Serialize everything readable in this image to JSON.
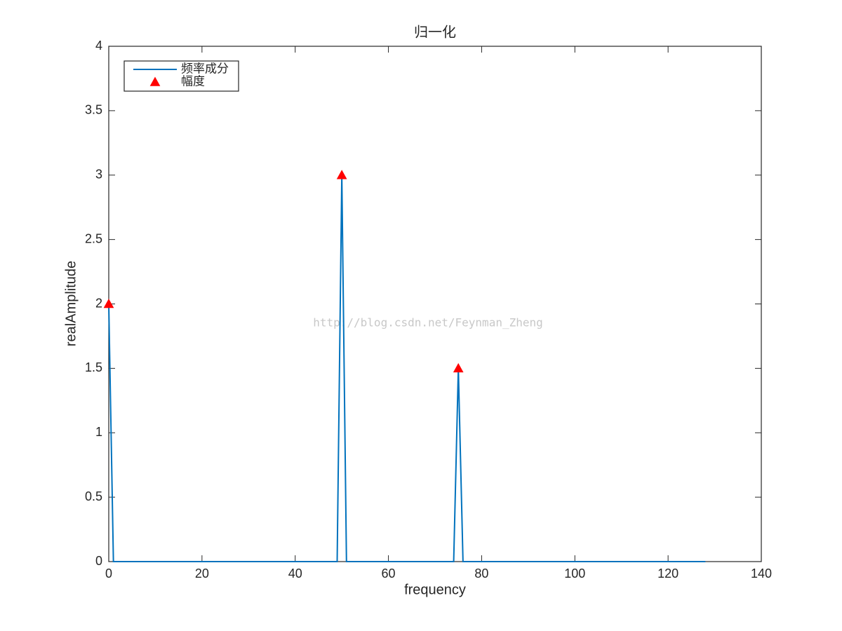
{
  "chart_data": {
    "type": "line",
    "title": "归一化",
    "x_label": "frequency",
    "y_label": "realAmplitude",
    "series": [
      {
        "name": "频率成分",
        "color": "#0072bd",
        "mode": "line",
        "x": [
          0,
          1,
          49,
          50,
          51,
          74,
          75,
          76,
          128
        ],
        "values": [
          2,
          0,
          0,
          3,
          0,
          0,
          1.5,
          0,
          0
        ]
      },
      {
        "name": "幅度",
        "color": "#ff0000",
        "mode": "markers",
        "marker": "triangle",
        "x": [
          0,
          50,
          75
        ],
        "values": [
          2,
          3,
          1.5
        ]
      }
    ],
    "xlim": [
      0,
      140
    ],
    "xticks": [
      0,
      20,
      40,
      60,
      80,
      100,
      120,
      140
    ],
    "ylim": [
      0,
      4
    ],
    "yticks": [
      0,
      0.5,
      1,
      1.5,
      2,
      2.5,
      3,
      3.5,
      4
    ],
    "grid": false,
    "legend": "upper-left",
    "annotations": [
      "http://blog.csdn.net/Feynman_Zheng"
    ]
  }
}
